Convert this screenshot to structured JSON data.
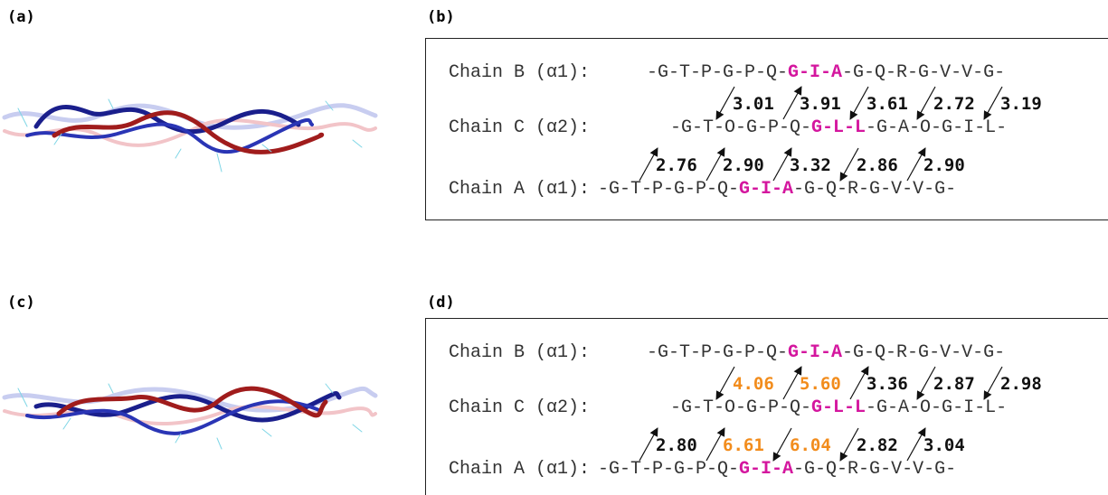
{
  "panel_labels": [
    "(a)",
    "(b)",
    "(c)",
    "(d)"
  ],
  "panel_b": {
    "chains": [
      {
        "label": "Chain B (α1):",
        "sequence": [
          "-G-T-P-G-P-Q-",
          "G-I-A",
          "-G-Q-R-G-V-V-G-"
        ]
      },
      {
        "label": "Chain C (α2):",
        "sequence": [
          "-G-T-O-G-P-Q-",
          "G-L-L",
          "-G-A-O-G-I-L-"
        ]
      },
      {
        "label": "Chain A (α1):",
        "sequence": [
          "-G-T-P-G-P-Q-",
          "G-I-A",
          "-G-Q-R-G-V-V-G-"
        ]
      }
    ],
    "distances": [
      [
        {
          "text": "3.01",
          "direction": "down"
        },
        {
          "text": "3.91",
          "direction": "up"
        },
        {
          "text": "3.61",
          "direction": "down"
        },
        {
          "text": "2.72",
          "direction": "down"
        },
        {
          "text": "3.19",
          "direction": "down"
        }
      ],
      [
        {
          "text": "2.76",
          "direction": "up"
        },
        {
          "text": "2.90",
          "direction": "up"
        },
        {
          "text": "3.32",
          "direction": "up"
        },
        {
          "text": "2.86",
          "direction": "down"
        },
        {
          "text": "2.90",
          "direction": "up"
        }
      ]
    ]
  },
  "panel_d": {
    "chains": [
      {
        "label": "Chain B (α1):",
        "sequence": [
          "-G-T-P-G-P-Q-",
          "G-I-A",
          "-G-Q-R-G-V-V-G-"
        ]
      },
      {
        "label": "Chain C (α2):",
        "sequence": [
          "-G-T-O-G-P-Q-",
          "G-L-L",
          "-G-A-O-G-I-L-"
        ]
      },
      {
        "label": "Chain A (α1):",
        "sequence": [
          "-G-T-P-G-P-Q-",
          "G-I-A",
          "-G-Q-R-G-V-V-G-"
        ]
      }
    ],
    "distances": [
      [
        {
          "text": "4.06",
          "direction": "down",
          "highlighted": true
        },
        {
          "text": "5.60",
          "direction": "up",
          "highlighted": true
        },
        {
          "text": "3.36",
          "direction": "up"
        },
        {
          "text": "2.87",
          "direction": "down"
        },
        {
          "text": "2.98",
          "direction": "down"
        }
      ],
      [
        {
          "text": "2.80",
          "direction": "up"
        },
        {
          "text": "6.61",
          "direction": "up",
          "highlighted": true
        },
        {
          "text": "6.04",
          "direction": "down",
          "highlighted": true
        },
        {
          "text": "2.82",
          "direction": "down"
        },
        {
          "text": "3.04",
          "direction": "up"
        }
      ]
    ]
  }
}
